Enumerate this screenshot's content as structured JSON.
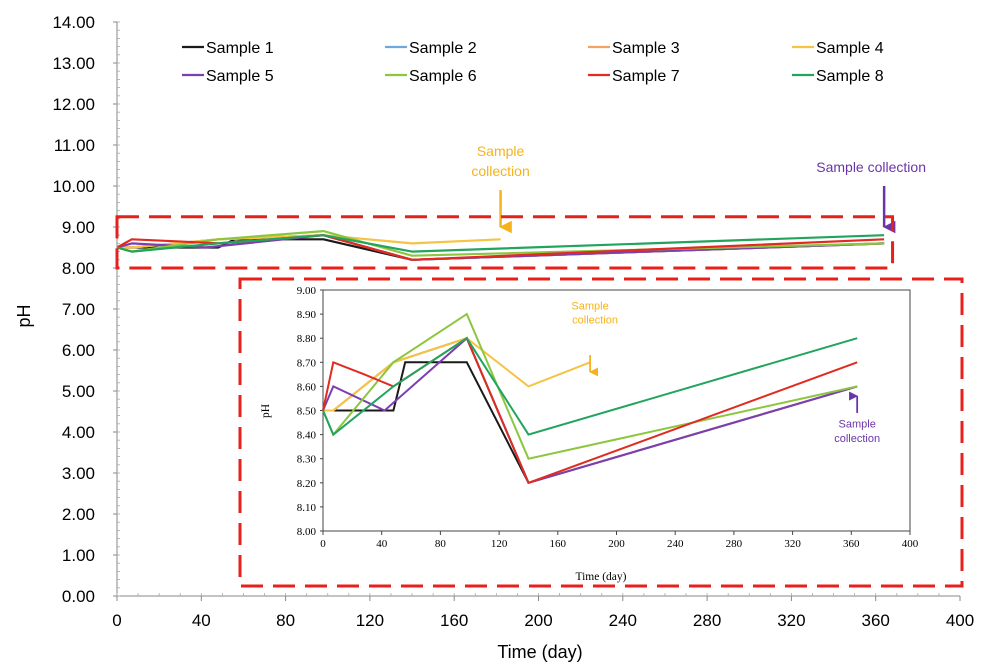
{
  "chart_data": [
    {
      "type": "line",
      "title": "",
      "xlabel": "Time (day)",
      "ylabel": "pH",
      "xlim": [
        0,
        400
      ],
      "ylim": [
        0,
        14
      ],
      "x_ticks": [
        "0",
        "40",
        "80",
        "120",
        "160",
        "200",
        "240",
        "280",
        "320",
        "360",
        "400"
      ],
      "y_ticks": [
        "0.00",
        "1.00",
        "2.00",
        "3.00",
        "4.00",
        "5.00",
        "6.00",
        "7.00",
        "8.00",
        "9.00",
        "10.00",
        "11.00",
        "12.00",
        "13.00",
        "14.00"
      ],
      "legend_position": "top",
      "series": [
        {
          "name": "Sample 1",
          "color": "#1a1a1a",
          "points": [
            [
              0,
              8.5
            ],
            [
              7,
              8.5
            ],
            [
              48,
              8.5
            ],
            [
              56,
              8.7
            ],
            [
              84,
              8.7
            ],
            [
              98,
              8.7
            ],
            [
              140,
              8.2
            ],
            [
              364,
              8.6
            ]
          ]
        },
        {
          "name": "Sample 2",
          "color": "#6fa8dc",
          "points": [
            [
              0,
              8.5
            ],
            [
              7,
              8.5
            ],
            [
              48,
              8.7
            ],
            [
              98,
              8.8
            ],
            [
              140,
              8.2
            ],
            [
              364,
              8.6
            ]
          ]
        },
        {
          "name": "Sample 3",
          "color": "#f4a261",
          "points": [
            [
              0,
              8.5
            ],
            [
              7,
              8.5
            ],
            [
              48,
              8.7
            ],
            [
              98,
              8.8
            ],
            [
              140,
              8.2
            ],
            [
              364,
              8.6
            ]
          ]
        },
        {
          "name": "Sample 4",
          "color": "#f6c343",
          "points": [
            [
              0,
              8.5
            ],
            [
              7,
              8.5
            ],
            [
              48,
              8.7
            ],
            [
              98,
              8.8
            ],
            [
              140,
              8.6
            ],
            [
              182,
              8.7
            ]
          ]
        },
        {
          "name": "Sample 5",
          "color": "#7b3fb0",
          "points": [
            [
              0,
              8.5
            ],
            [
              7,
              8.6
            ],
            [
              42,
              8.5
            ],
            [
              98,
              8.8
            ],
            [
              140,
              8.2
            ],
            [
              364,
              8.6
            ]
          ]
        },
        {
          "name": "Sample 6",
          "color": "#8cc63f",
          "points": [
            [
              0,
              8.5
            ],
            [
              7,
              8.4
            ],
            [
              48,
              8.7
            ],
            [
              98,
              8.9
            ],
            [
              140,
              8.3
            ],
            [
              364,
              8.6
            ]
          ]
        },
        {
          "name": "Sample 7",
          "color": "#e02b20",
          "points": [
            [
              0,
              8.5
            ],
            [
              7,
              8.7
            ],
            [
              28,
              8.65
            ],
            [
              48,
              8.6
            ],
            [
              98,
              8.8
            ],
            [
              140,
              8.2
            ],
            [
              364,
              8.7
            ]
          ]
        },
        {
          "name": "Sample 8",
          "color": "#22a45d",
          "points": [
            [
              0,
              8.5
            ],
            [
              7,
              8.4
            ],
            [
              48,
              8.6
            ],
            [
              98,
              8.8
            ],
            [
              140,
              8.4
            ],
            [
              364,
              8.8
            ]
          ]
        }
      ],
      "annotations": [
        {
          "text": "Sample collection",
          "lines": [
            "Sample",
            "collection"
          ],
          "color": "#f6b21b",
          "arrow_x": 182,
          "arrow_top_y": 9.9,
          "arrow_bottom_y": 9.0
        },
        {
          "text": "Sample collection",
          "lines": [
            "Sample collection"
          ],
          "color": "#6a35a8",
          "arrow_x": 364,
          "arrow_top_y": 10.0,
          "arrow_bottom_y": 9.0
        }
      ],
      "highlight_box": {
        "x": [
          0,
          368
        ],
        "y": [
          8.0,
          9.25
        ],
        "color": "#e8201c"
      }
    },
    {
      "type": "line",
      "title": "",
      "xlabel": "Time (day)",
      "ylabel": "pH",
      "xlim": [
        0,
        400
      ],
      "ylim": [
        8.0,
        9.0
      ],
      "x_ticks": [
        "0",
        "40",
        "80",
        "120",
        "160",
        "200",
        "240",
        "280",
        "320",
        "360",
        "400"
      ],
      "y_ticks": [
        "8.00",
        "8.10",
        "8.20",
        "8.30",
        "8.40",
        "8.50",
        "8.60",
        "8.70",
        "8.80",
        "8.90",
        "9.00"
      ],
      "note": "inset zoom of the main chart, same series",
      "annotations": [
        {
          "text": "Sample collection",
          "lines": [
            "Sample",
            "collection"
          ],
          "color": "#f6b21b",
          "arrow_x": 182,
          "arrow_top_y": 8.73,
          "arrow_bottom_y": 8.66,
          "text_y": [
            8.92,
            8.86
          ]
        },
        {
          "text": "Sample collection",
          "lines": [
            "Sample",
            "collection"
          ],
          "color": "#6a35a8",
          "arrow_x": 364,
          "arrow_top_y": 8.49,
          "arrow_bottom_y": 8.56,
          "text_y": [
            8.43,
            8.37
          ]
        }
      ],
      "frame_color": "#e8201c"
    }
  ]
}
